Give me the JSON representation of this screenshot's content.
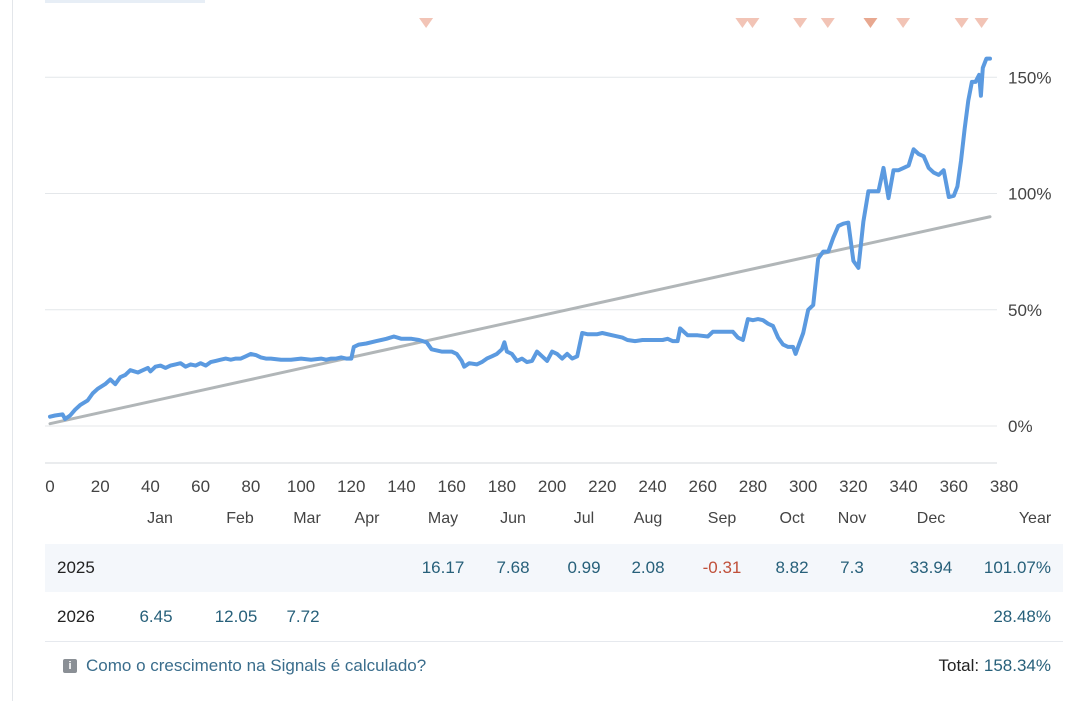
{
  "chart_data": {
    "type": "line",
    "xlim": [
      0,
      380
    ],
    "ylim": [
      -15,
      165
    ],
    "x_ticks": [
      "0",
      "20",
      "40",
      "60",
      "80",
      "100",
      "120",
      "140",
      "160",
      "180",
      "200",
      "220",
      "240",
      "260",
      "280",
      "300",
      "320",
      "340",
      "360",
      "380"
    ],
    "y_ticks": [
      {
        "value": 0,
        "label": "0%"
      },
      {
        "value": 50,
        "label": "50%"
      },
      {
        "value": 100,
        "label": "100%"
      },
      {
        "value": 150,
        "label": "150%"
      }
    ],
    "grid": "horizontal",
    "series": [
      {
        "role": "growth",
        "color": "#5b9ae0",
        "points": [
          [
            0,
            4
          ],
          [
            2,
            4.5
          ],
          [
            5,
            5
          ],
          [
            6,
            3
          ],
          [
            8,
            4.5
          ],
          [
            10,
            7
          ],
          [
            12,
            9
          ],
          [
            15,
            11
          ],
          [
            17,
            14
          ],
          [
            19,
            16
          ],
          [
            22,
            18
          ],
          [
            24,
            20
          ],
          [
            26,
            18
          ],
          [
            28,
            21
          ],
          [
            30,
            22
          ],
          [
            32,
            24
          ],
          [
            35,
            23
          ],
          [
            37,
            24
          ],
          [
            39,
            25
          ],
          [
            40,
            23.5
          ],
          [
            42,
            25.5
          ],
          [
            44,
            26
          ],
          [
            46,
            25
          ],
          [
            48,
            26
          ],
          [
            50,
            26.5
          ],
          [
            52,
            27
          ],
          [
            54,
            25.5
          ],
          [
            56,
            26.5
          ],
          [
            58,
            26
          ],
          [
            60,
            27
          ],
          [
            62,
            26
          ],
          [
            64,
            27.5
          ],
          [
            66,
            28
          ],
          [
            68,
            28.5
          ],
          [
            70,
            29
          ],
          [
            72,
            28.5
          ],
          [
            74,
            29
          ],
          [
            76,
            29
          ],
          [
            78,
            30
          ],
          [
            80,
            31
          ],
          [
            82,
            30.5
          ],
          [
            84,
            29.5
          ],
          [
            86,
            29
          ],
          [
            88,
            29
          ],
          [
            92,
            28.5
          ],
          [
            96,
            28.5
          ],
          [
            100,
            29
          ],
          [
            104,
            28.5
          ],
          [
            108,
            29
          ],
          [
            110,
            28.5
          ],
          [
            112,
            29
          ],
          [
            114,
            29
          ],
          [
            116,
            29.5
          ],
          [
            118,
            29
          ],
          [
            120,
            29
          ],
          [
            121,
            34
          ],
          [
            123,
            35
          ],
          [
            126,
            35.5
          ],
          [
            130,
            36.5
          ],
          [
            134,
            37.5
          ],
          [
            137,
            38.5
          ],
          [
            140,
            37.5
          ],
          [
            144,
            37.5
          ],
          [
            147,
            37
          ],
          [
            150,
            36
          ],
          [
            152,
            33
          ],
          [
            156,
            32
          ],
          [
            160,
            32
          ],
          [
            162,
            31
          ],
          [
            164,
            28
          ],
          [
            165,
            25.5
          ],
          [
            167,
            27
          ],
          [
            170,
            26.5
          ],
          [
            172,
            27.5
          ],
          [
            174,
            29
          ],
          [
            176,
            30
          ],
          [
            178,
            31
          ],
          [
            180,
            33
          ],
          [
            181,
            36
          ],
          [
            182,
            32
          ],
          [
            184,
            31
          ],
          [
            186,
            28
          ],
          [
            188,
            29
          ],
          [
            190,
            27.5
          ],
          [
            192,
            28
          ],
          [
            194,
            32
          ],
          [
            196,
            30
          ],
          [
            198,
            28
          ],
          [
            200,
            32
          ],
          [
            202,
            31
          ],
          [
            204,
            29
          ],
          [
            206,
            31
          ],
          [
            208,
            29
          ],
          [
            210,
            30
          ],
          [
            212,
            40
          ],
          [
            214,
            39.5
          ],
          [
            216,
            39.5
          ],
          [
            218,
            39.5
          ],
          [
            220,
            40
          ],
          [
            224,
            39
          ],
          [
            228,
            38
          ],
          [
            230,
            37
          ],
          [
            233,
            36.5
          ],
          [
            236,
            37
          ],
          [
            240,
            37
          ],
          [
            244,
            37
          ],
          [
            246,
            37.5
          ],
          [
            248,
            36.5
          ],
          [
            250,
            36.5
          ],
          [
            251,
            42
          ],
          [
            254,
            39
          ],
          [
            258,
            39
          ],
          [
            262,
            38.5
          ],
          [
            264,
            40.5
          ],
          [
            268,
            40.5
          ],
          [
            272,
            40.5
          ],
          [
            274,
            38
          ],
          [
            276,
            37
          ],
          [
            278,
            46
          ],
          [
            280,
            45.5
          ],
          [
            282,
            46
          ],
          [
            284,
            45.5
          ],
          [
            286,
            44
          ],
          [
            288,
            43
          ],
          [
            290,
            38
          ],
          [
            292,
            35
          ],
          [
            294,
            34
          ],
          [
            296,
            34
          ],
          [
            297,
            31
          ],
          [
            298,
            34
          ],
          [
            300,
            40
          ],
          [
            302,
            50
          ],
          [
            304,
            52
          ],
          [
            306,
            72
          ],
          [
            308,
            75
          ],
          [
            310,
            75
          ],
          [
            312,
            81
          ],
          [
            314,
            86
          ],
          [
            316,
            87
          ],
          [
            318,
            87.5
          ],
          [
            320,
            71
          ],
          [
            322,
            68
          ],
          [
            324,
            88
          ],
          [
            326,
            101
          ],
          [
            328,
            101
          ],
          [
            330,
            101
          ],
          [
            332,
            111
          ],
          [
            334,
            98
          ],
          [
            336,
            110
          ],
          [
            338,
            110
          ],
          [
            340,
            111
          ],
          [
            342,
            112
          ],
          [
            344,
            119
          ],
          [
            346,
            117
          ],
          [
            348,
            116
          ],
          [
            350,
            111
          ],
          [
            352,
            109
          ],
          [
            354,
            108
          ],
          [
            356,
            110
          ],
          [
            358,
            98.5
          ],
          [
            360,
            99
          ],
          [
            362,
            103
          ],
          [
            364,
            114
          ],
          [
            366,
            128
          ],
          [
            368,
            140
          ],
          [
            370,
            148
          ],
          [
            372,
            148
          ],
          [
            374,
            151
          ],
          [
            375,
            142
          ],
          [
            376,
            154
          ],
          [
            378,
            158
          ],
          [
            380,
            158
          ]
        ]
      },
      {
        "role": "trend",
        "color": "#b1b6b8",
        "points": [
          [
            0,
            1
          ],
          [
            380,
            90
          ]
        ]
      }
    ],
    "trade_markers": [
      {
        "x": 151,
        "color": "#f2c4b6"
      },
      {
        "x": 277,
        "color": "#f2c4b6"
      },
      {
        "x": 281,
        "color": "#f2c4b6"
      },
      {
        "x": 300,
        "color": "#f2c4b6"
      },
      {
        "x": 311,
        "color": "#f2c4b6"
      },
      {
        "x": 328,
        "color": "#e8a890"
      },
      {
        "x": 341,
        "color": "#f2c4b6"
      },
      {
        "x": 366,
        "color": "#f2c4b6"
      },
      {
        "x": 377,
        "color": "#f2c4b6"
      }
    ]
  },
  "table": {
    "months": [
      "Jan",
      "Feb",
      "Mar",
      "Apr",
      "May",
      "Jun",
      "Jul",
      "Aug",
      "Sep",
      "Oct",
      "Nov",
      "Dec",
      "Year"
    ],
    "rows": [
      {
        "year": "2025",
        "cells": [
          "",
          "",
          "",
          "",
          "16.17",
          "7.68",
          "0.99",
          "2.08",
          "-0.31",
          "8.82",
          "7.3",
          "33.94"
        ],
        "year_total": "101.07%"
      },
      {
        "year": "2026",
        "cells": [
          "6.45",
          "12.05",
          "7.72",
          "",
          "",
          "",
          "",
          "",
          "",
          "",
          "",
          ""
        ],
        "year_total": "28.48%"
      }
    ]
  },
  "footer": {
    "info_icon": "info-icon",
    "help_link": "Como o crescimento na Signals é calculado?",
    "total_label": "Total:",
    "total_value": "158.34%"
  },
  "colors": {
    "positive": "#27607a",
    "negative": "#c0503a",
    "growth_line": "#5b9ae0",
    "trend_line": "#b1b6b8"
  }
}
